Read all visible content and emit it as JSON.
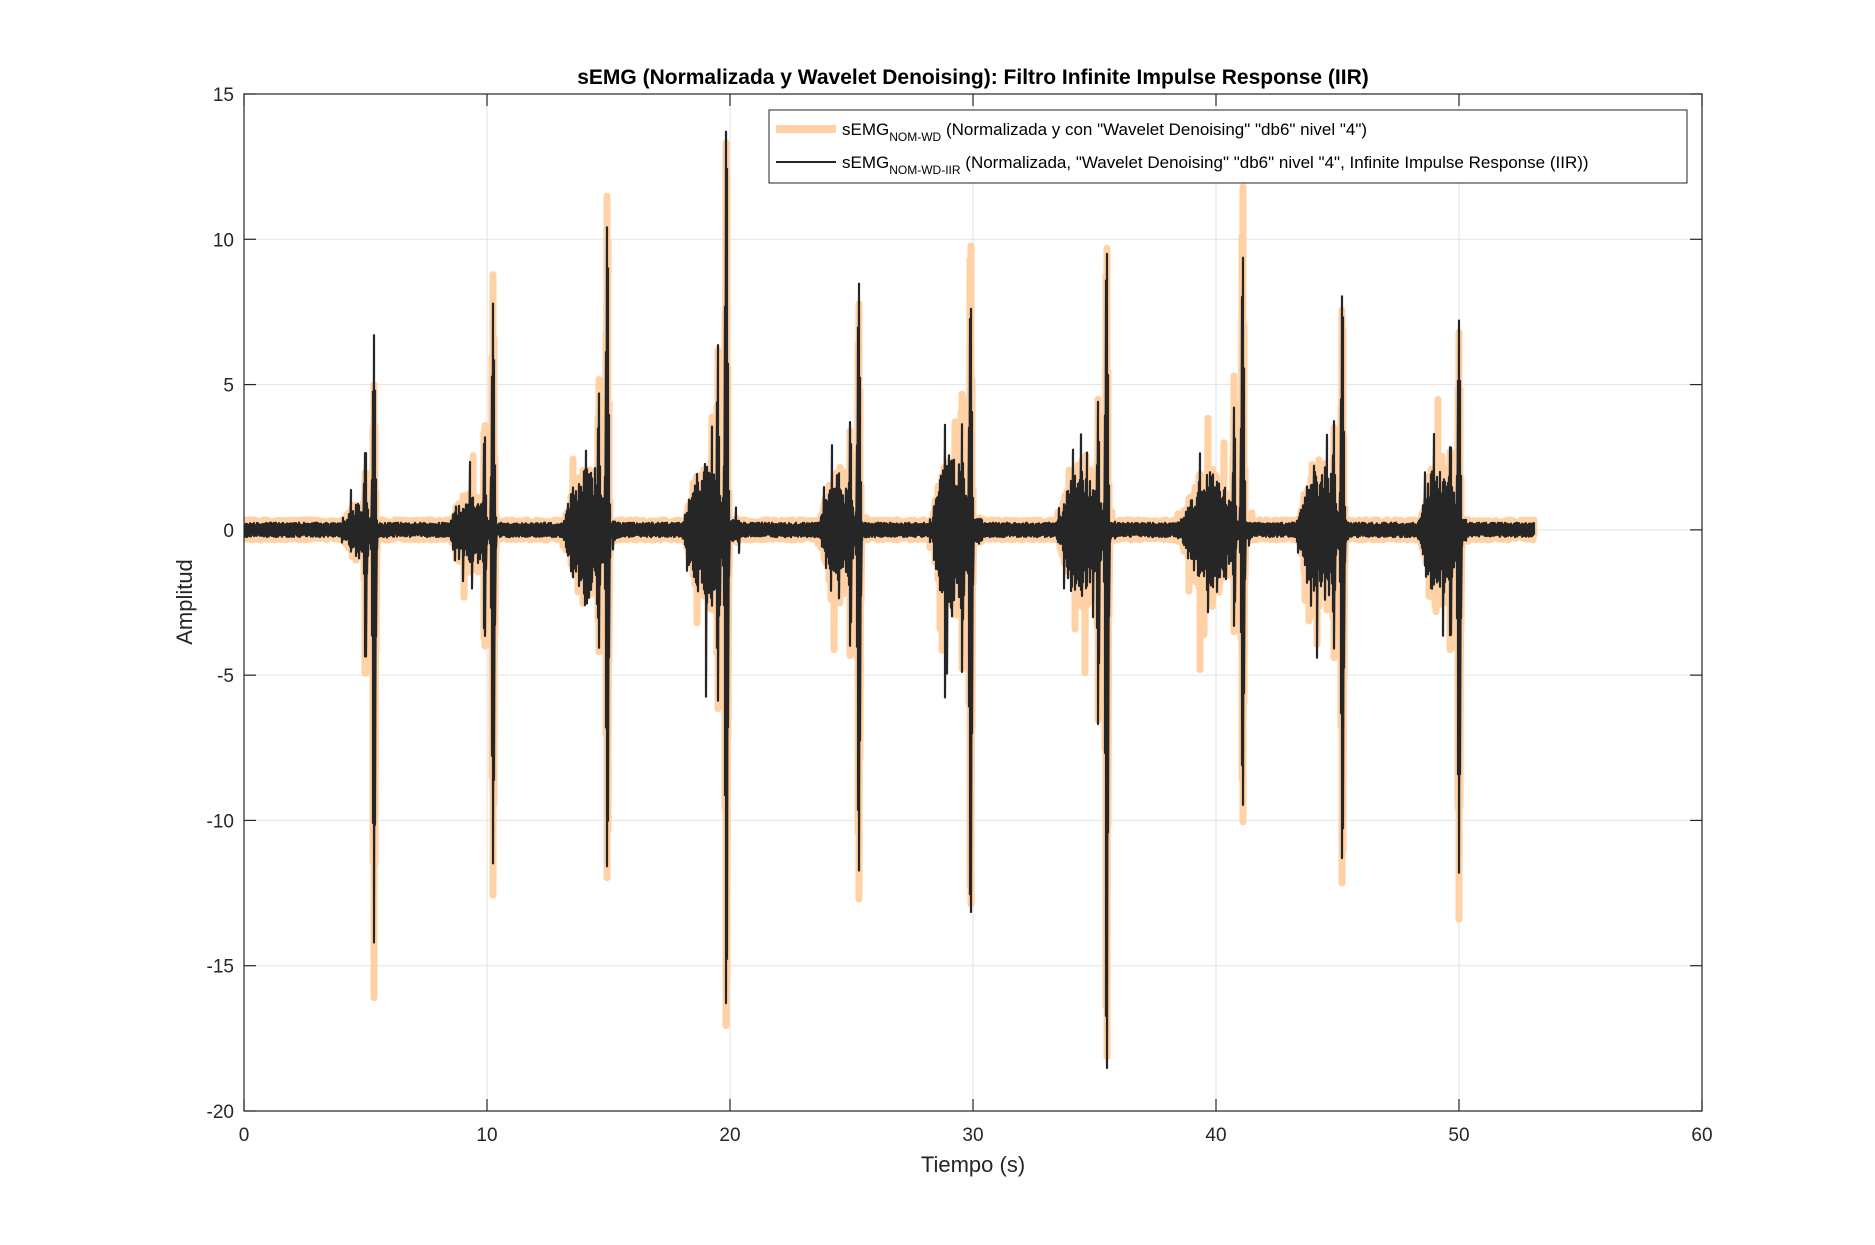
{
  "chart_data": {
    "type": "line",
    "title": "sEMG (Normalizada y Wavelet Denoising): Filtro Infinite Impulse Response (IIR)",
    "xlabel": "Tiempo (s)",
    "ylabel": "Amplitud",
    "xlim": [
      0,
      60
    ],
    "ylim": [
      -20,
      15
    ],
    "x_ticks": [
      0,
      10,
      20,
      30,
      40,
      50,
      60
    ],
    "y_ticks": [
      -20,
      -15,
      -10,
      -5,
      0,
      5,
      10,
      15
    ],
    "x_tick_labels": [
      "0",
      "10",
      "20",
      "30",
      "40",
      "50",
      "60"
    ],
    "y_tick_labels": [
      "-20",
      "-15",
      "-10",
      "-5",
      "0",
      "5",
      "10",
      "15"
    ],
    "grid": true,
    "legend_position": "top-right",
    "series": [
      {
        "name": "sEMG_NOM-WD (Normalizada y con \"Wavelet Denoising\" \"db6\" nivel \"4\")",
        "legend_main": "sEMG",
        "legend_sub": "NOM-WD",
        "legend_rest": " (Normalizada y con \"Wavelet Denoising\" \"db6\" nivel \"4\")",
        "color": "#FFD1A4",
        "t_range": [
          0,
          53.1
        ],
        "baseline_amplitude": 0.35,
        "bursts": [
          {
            "t_start": 3.9,
            "t_end": 5.9,
            "peak_time": 5.35,
            "max": 5.0,
            "min": -16.1,
            "activity": 1.0
          },
          {
            "t_start": 8.3,
            "t_end": 10.6,
            "peak_time": 10.25,
            "max": 8.8,
            "min": -12.6,
            "activity": 1.3
          },
          {
            "t_start": 13.0,
            "t_end": 15.5,
            "peak_time": 14.95,
            "max": 11.8,
            "min": -12.3,
            "activity": 2.3
          },
          {
            "t_start": 18.0,
            "t_end": 20.4,
            "peak_time": 19.85,
            "max": 13.9,
            "min": -17.8,
            "activity": 2.6
          },
          {
            "t_start": 23.6,
            "t_end": 25.6,
            "peak_time": 25.3,
            "max": 7.9,
            "min": -12.9,
            "activity": 2.2
          },
          {
            "t_start": 28.2,
            "t_end": 30.4,
            "peak_time": 29.9,
            "max": 10.4,
            "min": -13.7,
            "activity": 3.0
          },
          {
            "t_start": 33.4,
            "t_end": 35.9,
            "peak_time": 35.5,
            "max": 10.1,
            "min": -18.9,
            "activity": 2.4
          },
          {
            "t_start": 38.4,
            "t_end": 41.5,
            "peak_time": 41.1,
            "max": 12.1,
            "min": -10.3,
            "activity": 2.2
          },
          {
            "t_start": 43.3,
            "t_end": 45.5,
            "peak_time": 45.2,
            "max": 7.9,
            "min": -12.7,
            "activity": 2.6
          },
          {
            "t_start": 48.3,
            "t_end": 50.4,
            "peak_time": 50.0,
            "max": 6.8,
            "min": -13.4,
            "activity": 2.7
          }
        ]
      },
      {
        "name": "sEMG_NOM-WD-IIR (Normalizada, \"Wavelet Denoising\" \"db6\" nivel \"4\", Infinite Impulse Response (IIR))",
        "legend_main": "sEMG",
        "legend_sub": "NOM-WD-IIR",
        "legend_rest": " (Normalizada, \"Wavelet Denoising\" \"db6\" nivel \"4\", Infinite Impulse Response (IIR))",
        "color": "#262626",
        "t_range": [
          0,
          53.1
        ],
        "baseline_amplitude": 0.25,
        "bursts": [
          {
            "t_start": 3.9,
            "t_end": 5.9,
            "peak_time": 5.35,
            "max": 6.7,
            "min": -14.2,
            "activity": 0.9
          },
          {
            "t_start": 8.3,
            "t_end": 10.6,
            "peak_time": 10.25,
            "max": 7.8,
            "min": -11.5,
            "activity": 1.2
          },
          {
            "t_start": 13.0,
            "t_end": 15.5,
            "peak_time": 14.95,
            "max": 10.7,
            "min": -11.9,
            "activity": 2.1
          },
          {
            "t_start": 18.0,
            "t_end": 20.4,
            "peak_time": 19.85,
            "max": 14.3,
            "min": -17.0,
            "activity": 2.4
          },
          {
            "t_start": 23.6,
            "t_end": 25.6,
            "peak_time": 25.3,
            "max": 8.6,
            "min": -11.9,
            "activity": 2.0
          },
          {
            "t_start": 28.2,
            "t_end": 30.4,
            "peak_time": 29.9,
            "max": 8.1,
            "min": -14.0,
            "activity": 2.7
          },
          {
            "t_start": 33.4,
            "t_end": 35.9,
            "peak_time": 35.5,
            "max": 9.9,
            "min": -19.3,
            "activity": 2.2
          },
          {
            "t_start": 38.4,
            "t_end": 41.5,
            "peak_time": 41.1,
            "max": 9.6,
            "min": -9.7,
            "activity": 2.0
          },
          {
            "t_start": 43.3,
            "t_end": 45.5,
            "peak_time": 45.2,
            "max": 8.4,
            "min": -11.8,
            "activity": 2.4
          },
          {
            "t_start": 48.3,
            "t_end": 50.4,
            "peak_time": 50.0,
            "max": 7.2,
            "min": -11.8,
            "activity": 2.5
          }
        ]
      }
    ]
  }
}
